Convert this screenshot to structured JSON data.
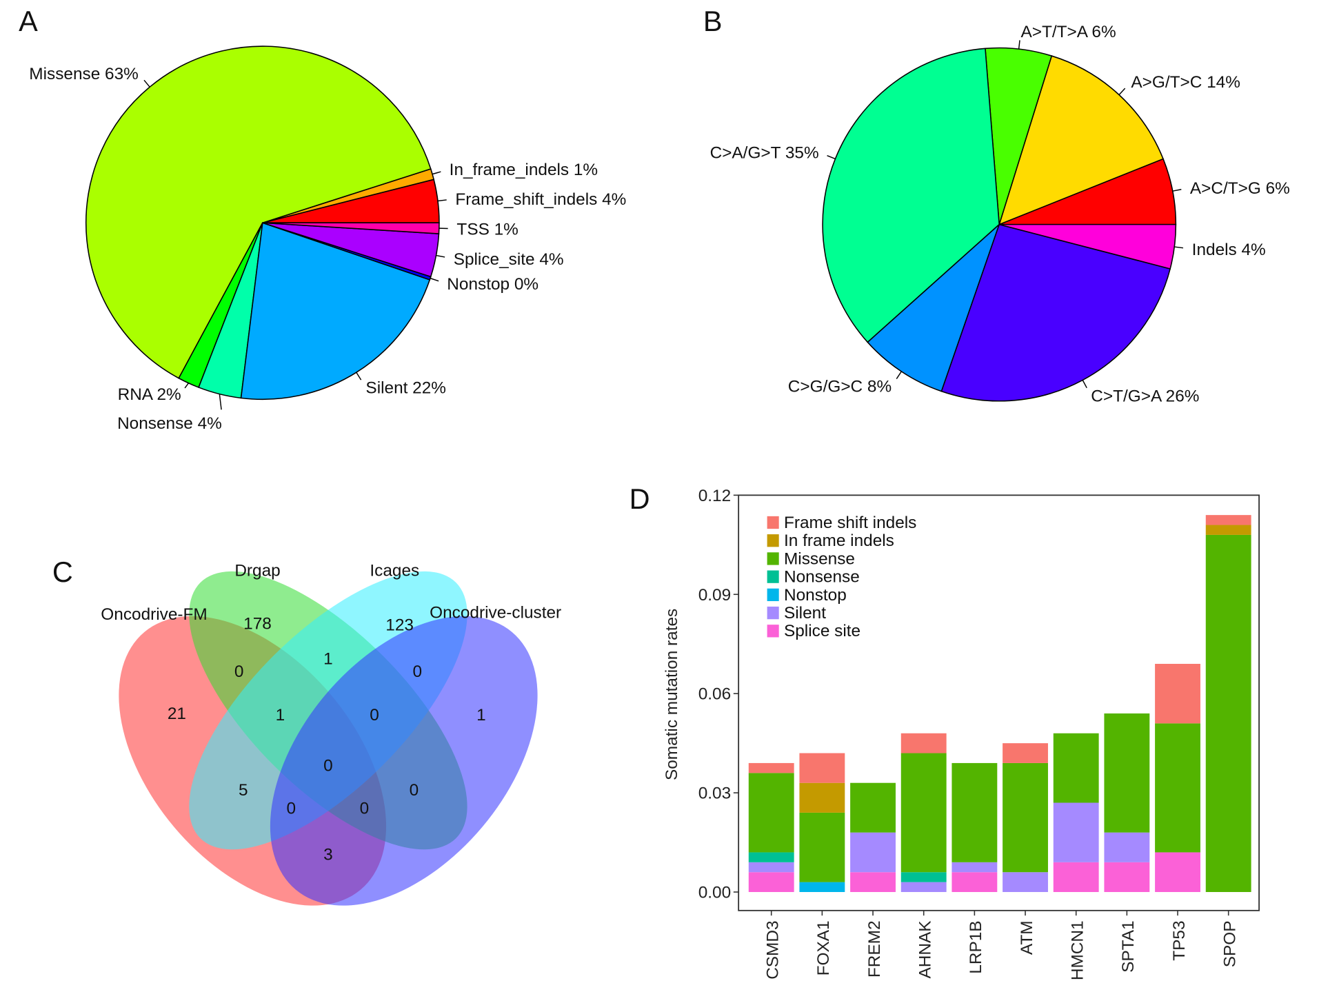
{
  "panels": {
    "a": "A",
    "b": "B",
    "c": "C",
    "d": "D"
  },
  "chart_data": [
    {
      "type": "pie",
      "panel": "A",
      "direction": "counterclockwise from 3 o'clock",
      "slices": [
        {
          "label": "Frame_shift_indels 4%",
          "value": 4,
          "color": "#FF0000"
        },
        {
          "label": "In_frame_indels 1%",
          "value": 1,
          "color": "#FFAA00"
        },
        {
          "label": "Missense 63%",
          "value": 63,
          "color": "#AAFF00"
        },
        {
          "label": "RNA 2%",
          "value": 2,
          "color": "#00FF00"
        },
        {
          "label": "Nonsense 4%",
          "value": 4,
          "color": "#00FFAA"
        },
        {
          "label": "Silent 22%",
          "value": 22,
          "color": "#00AAFF"
        },
        {
          "label": "Nonstop 0%",
          "value": 0.3,
          "color": "#0000FF"
        },
        {
          "label": "Splice_site 4%",
          "value": 4,
          "color": "#AA00FF"
        },
        {
          "label": "TSS 1%",
          "value": 1,
          "color": "#FF00AA"
        }
      ]
    },
    {
      "type": "pie",
      "panel": "B",
      "direction": "counterclockwise from 3 o'clock",
      "slices": [
        {
          "label": "A>C/T>G 6%",
          "value": 6,
          "color": "#FF0000"
        },
        {
          "label": "A>G/T>C 14%",
          "value": 14,
          "color": "#FFDB00"
        },
        {
          "label": "A>T/T>A 6%",
          "value": 6,
          "color": "#49FF00"
        },
        {
          "label": "C>A/G>T 35%",
          "value": 35,
          "color": "#00FF92"
        },
        {
          "label": "C>G/G>C 8%",
          "value": 8,
          "color": "#0092FF"
        },
        {
          "label": "C>T/G>A 26%",
          "value": 26,
          "color": "#4900FF"
        },
        {
          "label": "Indels 4%",
          "value": 4,
          "color": "#FF00DB"
        }
      ]
    },
    {
      "type": "venn",
      "panel": "C",
      "sets": [
        {
          "name": "Oncodrive-FM",
          "color": "#FF3333"
        },
        {
          "name": "Drgap",
          "color": "#33DD33"
        },
        {
          "name": "Icages",
          "color": "#33EEFF"
        },
        {
          "name": "Oncodrive-cluster",
          "color": "#3333FF"
        }
      ],
      "regions": [
        {
          "sets": [
            "Oncodrive-FM"
          ],
          "count": "21"
        },
        {
          "sets": [
            "Drgap"
          ],
          "count": "178"
        },
        {
          "sets": [
            "Icages"
          ],
          "count": "123"
        },
        {
          "sets": [
            "Oncodrive-cluster"
          ],
          "count": "1"
        },
        {
          "sets": [
            "Oncodrive-FM",
            "Drgap"
          ],
          "count": "0"
        },
        {
          "sets": [
            "Drgap",
            "Icages"
          ],
          "count": "1"
        },
        {
          "sets": [
            "Icages",
            "Oncodrive-cluster"
          ],
          "count": "0"
        },
        {
          "sets": [
            "Oncodrive-FM",
            "Drgap",
            "Icages"
          ],
          "count": "1"
        },
        {
          "sets": [
            "Drgap",
            "Icages",
            "Oncodrive-cluster"
          ],
          "count": "0"
        },
        {
          "sets": [
            "Oncodrive-FM",
            "Drgap",
            "Icages",
            "Oncodrive-cluster"
          ],
          "count": "0"
        },
        {
          "sets": [
            "Oncodrive-FM",
            "Icages"
          ],
          "count": "5"
        },
        {
          "sets": [
            "Drgap",
            "Oncodrive-cluster"
          ],
          "count": "0"
        },
        {
          "sets": [
            "Oncodrive-FM",
            "Icages",
            "Oncodrive-cluster"
          ],
          "count": "0"
        },
        {
          "sets": [
            "Oncodrive-FM",
            "Drgap",
            "Oncodrive-cluster"
          ],
          "count": "0"
        },
        {
          "sets": [
            "Oncodrive-FM",
            "Oncodrive-cluster"
          ],
          "count": "3"
        }
      ]
    },
    {
      "type": "bar",
      "stacked": true,
      "panel": "D",
      "ylabel": "Somatic mutation rates",
      "xlabel": "",
      "ylim": [
        0,
        0.12
      ],
      "yticks": [
        "0.00",
        "0.03",
        "0.06",
        "0.09",
        "0.12"
      ],
      "legend_position": "top-left",
      "categories": [
        "CSMD3",
        "FOXA1",
        "FREM2",
        "AHNAK",
        "LRP1B",
        "ATM",
        "HMCN1",
        "SPTA1",
        "TP53",
        "SPOP"
      ],
      "series": [
        {
          "name": "Splice site",
          "color": "#FB61D7",
          "values": [
            0.006,
            0,
            0.006,
            0,
            0.006,
            0,
            0.009,
            0.009,
            0.012,
            0
          ]
        },
        {
          "name": "Silent",
          "color": "#A58AFF",
          "values": [
            0.003,
            0,
            0.012,
            0.003,
            0.003,
            0.006,
            0.018,
            0.009,
            0,
            0
          ]
        },
        {
          "name": "Nonstop",
          "color": "#00B6EB",
          "values": [
            0,
            0.003,
            0,
            0,
            0,
            0,
            0,
            0,
            0,
            0
          ]
        },
        {
          "name": "Nonsense",
          "color": "#00C094",
          "values": [
            0.003,
            0,
            0,
            0.003,
            0,
            0,
            0,
            0,
            0,
            0
          ]
        },
        {
          "name": "Missense",
          "color": "#53B400",
          "values": [
            0.024,
            0.021,
            0.015,
            0.036,
            0.03,
            0.033,
            0.021,
            0.036,
            0.039,
            0.108
          ]
        },
        {
          "name": "In frame indels",
          "color": "#C49A00",
          "values": [
            0,
            0.009,
            0,
            0,
            0,
            0,
            0,
            0,
            0,
            0.003
          ]
        },
        {
          "name": "Frame shift indels",
          "color": "#F8766D",
          "values": [
            0.003,
            0.009,
            0,
            0.006,
            0,
            0.006,
            0,
            0,
            0.018,
            0.003
          ]
        }
      ],
      "legend_order": [
        "Frame shift indels",
        "In frame indels",
        "Missense",
        "Nonsense",
        "Nonstop",
        "Silent",
        "Splice site"
      ]
    }
  ]
}
